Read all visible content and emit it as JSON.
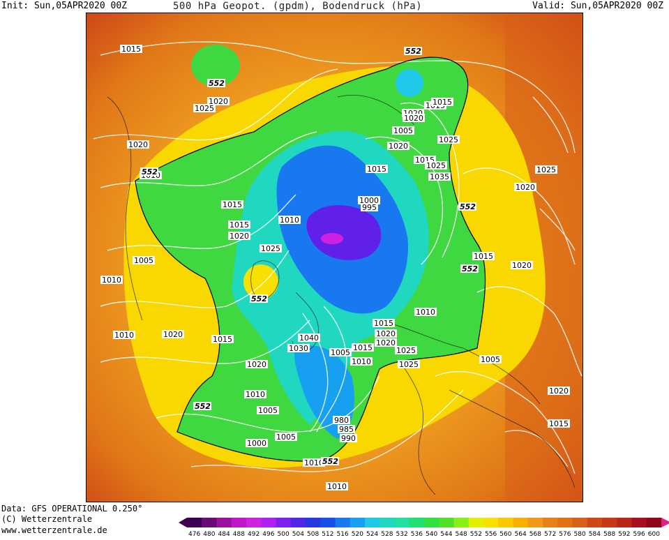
{
  "header": {
    "init": "Init: Sun,05APR2020 00Z",
    "title": "500 hPa Geopot. (gpdm), Bodendruck (hPa)",
    "valid": "Valid: Sun,05APR2020 00Z"
  },
  "footer": {
    "data_source": "Data: GFS OPERATIONAL 0.250°",
    "copyright": "(C) Wetterzentrale",
    "url": "www.wetterzentrale.de"
  },
  "colorbar": {
    "ticks": [
      "476",
      "480",
      "484",
      "488",
      "492",
      "496",
      "500",
      "504",
      "508",
      "512",
      "516",
      "520",
      "524",
      "528",
      "532",
      "536",
      "540",
      "544",
      "548",
      "552",
      "556",
      "560",
      "564",
      "568",
      "572",
      "576",
      "580",
      "584",
      "588",
      "592",
      "596",
      "600"
    ],
    "colors": [
      "#3c0050",
      "#6a0a78",
      "#9a10a0",
      "#c018c8",
      "#d020e0",
      "#b020f0",
      "#8020f0",
      "#5028e8",
      "#2838e0",
      "#1850e8",
      "#1878f0",
      "#18a0f0",
      "#20c8e8",
      "#20d8c0",
      "#20e0a0",
      "#20e070",
      "#30e040",
      "#50e028",
      "#88f018",
      "#e0f000",
      "#f8e000",
      "#f8c800",
      "#f8b000",
      "#f09818",
      "#e88018",
      "#e07010",
      "#d86018",
      "#d04818",
      "#c83818",
      "#b82818",
      "#a81020",
      "#900818"
    ]
  },
  "map_labels": {
    "isobars": [
      "1015",
      "1020",
      "1025",
      "1020",
      "1010",
      "1015",
      "1015",
      "1020",
      "1005",
      "1010",
      "1025",
      "1010",
      "1005",
      "1015",
      "1020",
      "1015",
      "1020",
      "1015",
      "1025",
      "1035",
      "1015",
      "1020",
      "1025",
      "1000",
      "995",
      "1020",
      "1025",
      "1015",
      "1010",
      "1020",
      "1015",
      "1020",
      "1010",
      "1005",
      "1040",
      "1030",
      "1020",
      "1025",
      "1005",
      "1015",
      "1020",
      "1020",
      "1025",
      "1015",
      "1010",
      "1010",
      "1005",
      "1000",
      "980",
      "985",
      "990",
      "1005",
      "1010",
      "1010",
      "1020",
      "1015"
    ],
    "height_552": "552"
  }
}
